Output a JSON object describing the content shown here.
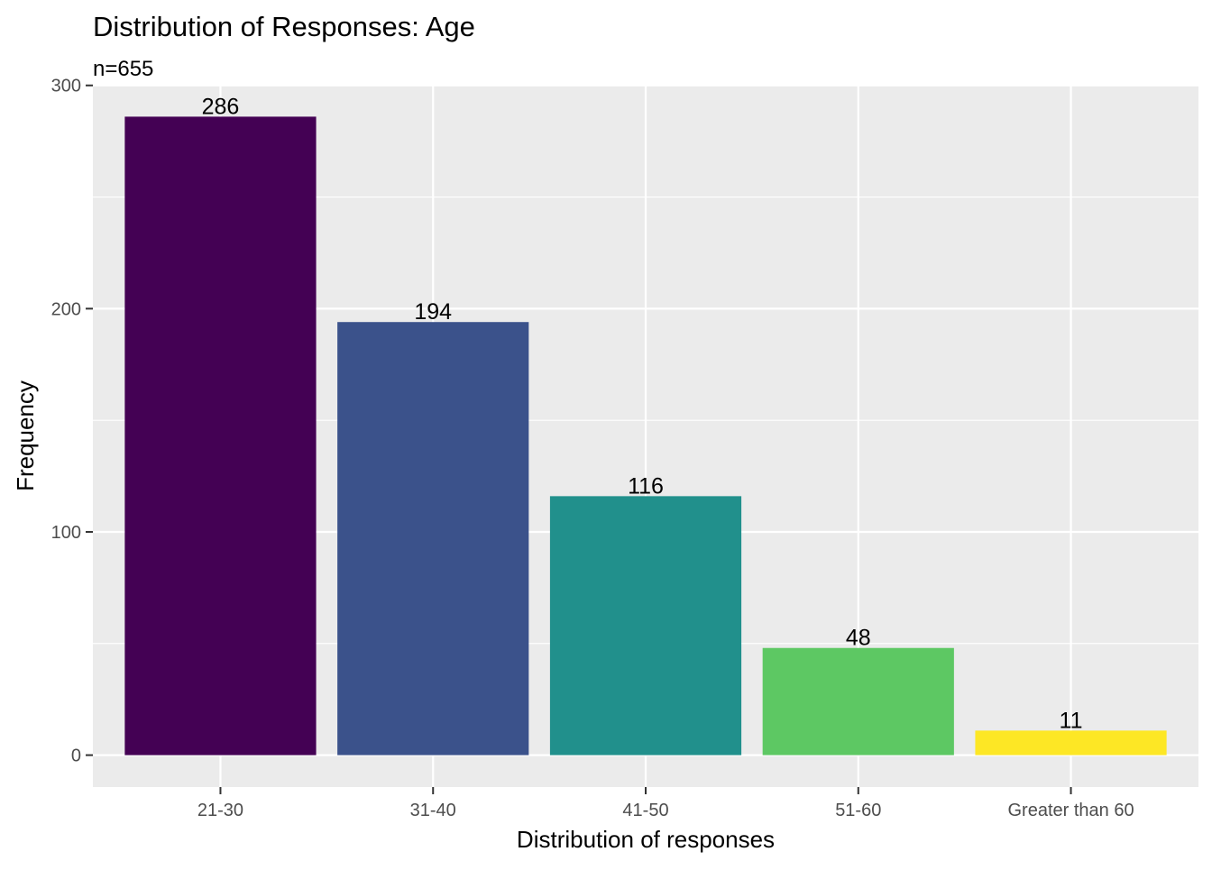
{
  "chart_data": {
    "type": "bar",
    "title": "Distribution of Responses: Age",
    "subtitle": "n=655",
    "xlabel": "Distribution of responses",
    "ylabel": "Frequency",
    "categories": [
      "21-30",
      "31-40",
      "41-50",
      "51-60",
      "Greater than 60"
    ],
    "values": [
      286,
      194,
      116,
      48,
      11
    ],
    "data_labels": [
      "286",
      "194",
      "116",
      "48",
      "11"
    ],
    "colors": [
      "#440154",
      "#3B528B",
      "#21908C",
      "#5DC863",
      "#FDE725"
    ],
    "ylim": [
      -14.3,
      300.3
    ],
    "yticks": [
      0,
      100,
      200,
      300
    ],
    "ytick_labels": [
      "0",
      "100",
      "200",
      "300"
    ],
    "grid": true,
    "legend": "none",
    "panel_background": "#EBEBEB",
    "grid_color": "#FFFFFF"
  }
}
